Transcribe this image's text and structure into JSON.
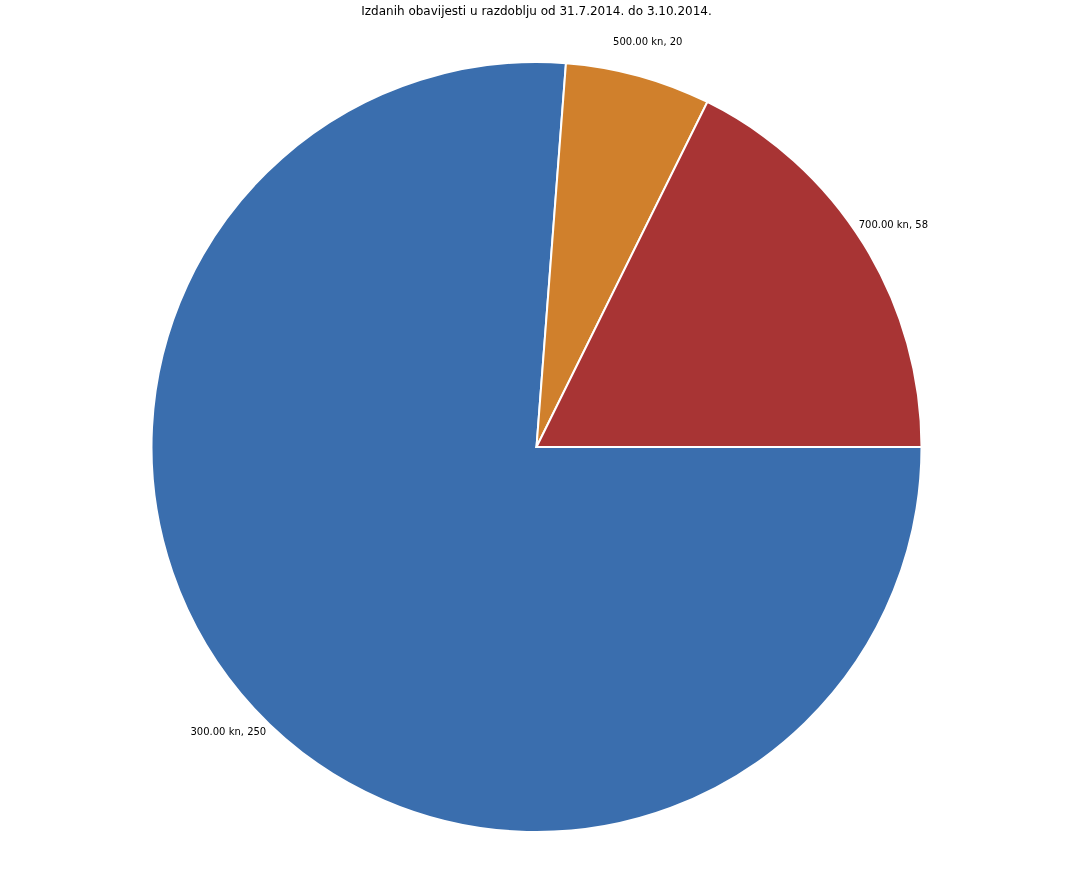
{
  "chart_data": {
    "type": "pie",
    "title": "Izdanih obavijesti u razdoblju od 31.7.2014. do 3.10.2014.",
    "categories": [
      "300.00 kn, 250",
      "500.00 kn, 20",
      "700.00 kn, 58"
    ],
    "values": [
      250,
      20,
      58
    ],
    "colors": [
      "#3a6eae",
      "#d0802c",
      "#a83434"
    ],
    "legend": false
  }
}
